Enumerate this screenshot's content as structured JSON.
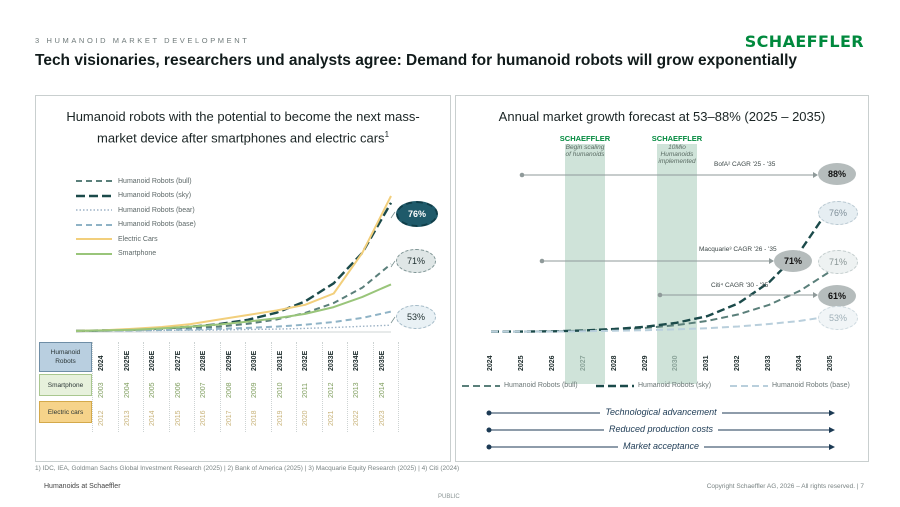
{
  "header": {
    "section_label": "3 HUMANOID MARKET DEVELOPMENT",
    "headline": "Tech visionaries, researchers und analysts agree: Demand for humanoid robots will grow exponentially",
    "brand": "SCHAEFFLER"
  },
  "left_panel": {
    "title_line1": "Humanoid robots with the potential to become the next mass-",
    "title_line2": "market device after smartphones and electric cars",
    "title_sup": "1",
    "legend": [
      {
        "label": "Humanoid Robots (bull)",
        "color": "#5a7f7a",
        "style": "dashed"
      },
      {
        "label": "Humanoid Robots (sky)",
        "color": "#1b4a4a",
        "style": "dashed-bold"
      },
      {
        "label": "Humanoid Robots (bear)",
        "color": "#9db3c6",
        "style": "dotted"
      },
      {
        "label": "Humanoid Robots (base)",
        "color": "#8fb3c6",
        "style": "dashed"
      },
      {
        "label": "Electric Cars",
        "color": "#f2cf7c",
        "style": "solid"
      },
      {
        "label": "Smartphone",
        "color": "#99c57a",
        "style": "solid"
      }
    ],
    "row_labels": {
      "humanoid": "Humanoid Robots",
      "smartphone": "Smartphone",
      "electric_cars": "Electric cars"
    },
    "humanoid_years": [
      "2024",
      "2025E",
      "2026E",
      "2027E",
      "2028E",
      "2029E",
      "2030E",
      "2031E",
      "2032E",
      "2033E",
      "2034E",
      "2035E"
    ],
    "smartphone_years": [
      "2003",
      "2004",
      "2005",
      "2006",
      "2007",
      "2008",
      "2009",
      "2010",
      "2011",
      "2012",
      "2013",
      "2014"
    ],
    "electric_car_years": [
      "2012",
      "2013",
      "2014",
      "2015",
      "2016",
      "2017",
      "2018",
      "2019",
      "2020",
      "2021",
      "2022",
      "2023"
    ],
    "badges": [
      "76%",
      "71%",
      "53%"
    ]
  },
  "right_panel": {
    "title": "Annual market growth forecast at 53–88% (2025 – 2035)",
    "brand_tag": "SCHAEFFLER",
    "band1_text": "Begin scaling of humanoids",
    "band2_text": "10Mio Humanoids implemented",
    "years": [
      "2024",
      "2025",
      "2026",
      "2027",
      "2028",
      "2029",
      "2030",
      "2031",
      "2032",
      "2033",
      "2034",
      "2035"
    ],
    "forecasts": [
      {
        "label": "BofA² CAGR '25 - '35",
        "value": "88%"
      },
      {
        "label": "Macquarie³ CAGR '26 - '35",
        "value": "71%"
      },
      {
        "label": "Citi⁴ CAGR '30 - '35",
        "value": "61%"
      }
    ],
    "scenario_badges": [
      "76%",
      "71%",
      "53%"
    ],
    "bottom_legend": [
      {
        "label": "Humanoid Robots (bull)",
        "color": "#5a7f7a"
      },
      {
        "label": "Humanoid Robots (sky)",
        "color": "#1b4a4a"
      },
      {
        "label": "Humanoid Robots (base)",
        "color": "#b9cfdc"
      }
    ],
    "drivers": [
      "Technological advancement",
      "Reduced production costs",
      "Market acceptance"
    ]
  },
  "chart_data": [
    {
      "type": "line",
      "title": "Humanoid robots with the potential to become the next mass-market device after smartphones and electric cars",
      "x": [
        "2024",
        "2025E",
        "2026E",
        "2027E",
        "2028E",
        "2029E",
        "2030E",
        "2031E",
        "2032E",
        "2033E",
        "2034E",
        "2035E"
      ],
      "series": [
        {
          "name": "Humanoid Robots (bull)",
          "values": [
            0.5,
            0.6,
            0.8,
            1.1,
            1.6,
            2.4,
            3.6,
            5.5,
            8.4,
            12.8,
            19.6,
            30
          ]
        },
        {
          "name": "Humanoid Robots (sky)",
          "values": [
            0.5,
            0.7,
            1.0,
            1.5,
            2.3,
            3.5,
            5.4,
            8.5,
            13.5,
            21.5,
            35,
            57
          ]
        },
        {
          "name": "Humanoid Robots (bear)",
          "values": [
            0.5,
            0.5,
            0.6,
            0.7,
            0.8,
            0.9,
            1.1,
            1.3,
            1.6,
            2.0,
            2.5,
            3.0
          ]
        },
        {
          "name": "Humanoid Robots (base)",
          "values": [
            0.5,
            0.6,
            0.7,
            0.9,
            1.1,
            1.4,
            1.8,
            2.4,
            3.2,
            4.4,
            6.2,
            9
          ]
        },
        {
          "name": "Electric Cars",
          "values": [
            0.5,
            0.8,
            1.4,
            2.2,
            3.5,
            5.5,
            7.5,
            9.5,
            12,
            17,
            35,
            60
          ]
        },
        {
          "name": "Smartphone",
          "values": [
            0.5,
            0.7,
            1.0,
            1.6,
            2.4,
            3.3,
            4.6,
            6.1,
            8.0,
            11,
            15.5,
            21
          ]
        }
      ],
      "annotations": [
        "76%",
        "71%",
        "53%"
      ]
    },
    {
      "type": "line",
      "title": "Annual market growth forecast at 53–88% (2025 – 2035)",
      "x": [
        "2024",
        "2025",
        "2026",
        "2027",
        "2028",
        "2029",
        "2030",
        "2031",
        "2032",
        "2033",
        "2034",
        "2035"
      ],
      "series": [
        {
          "name": "Humanoid Robots (bull)",
          "values": [
            0.5,
            0.5,
            0.6,
            0.8,
            1.2,
            1.8,
            2.8,
            4.3,
            6.6,
            10,
            15,
            22
          ]
        },
        {
          "name": "Humanoid Robots (sky)",
          "values": [
            0.5,
            0.5,
            0.6,
            0.9,
            1.4,
            2.2,
            3.6,
            6,
            10.5,
            18,
            29,
            45
          ]
        },
        {
          "name": "Humanoid Robots (base)",
          "values": [
            0.5,
            0.5,
            0.5,
            0.6,
            0.8,
            1.0,
            1.3,
            1.7,
            2.3,
            3.2,
            4.3,
            6
          ]
        }
      ],
      "annotations": [
        "BofA² CAGR '25 - '35: 88%",
        "Macquarie³ CAGR '26 - '35: 71%",
        "Citi⁴ CAGR '30 - '35: 61%",
        "76%",
        "71%",
        "53%"
      ]
    }
  ],
  "footer": {
    "footnote": "1) IDC, IEA, Goldman Sachs Global Investment Research (2025) | 2) Bank of America (2025) | 3) Macquarie Equity Research (2025) | 4) Citi (2024)",
    "left": "Humanoids at Schaeffler",
    "right": "Copyright Schaeffler AG, 2026 – All rights reserved. | 7",
    "center": "PUBLIC"
  }
}
